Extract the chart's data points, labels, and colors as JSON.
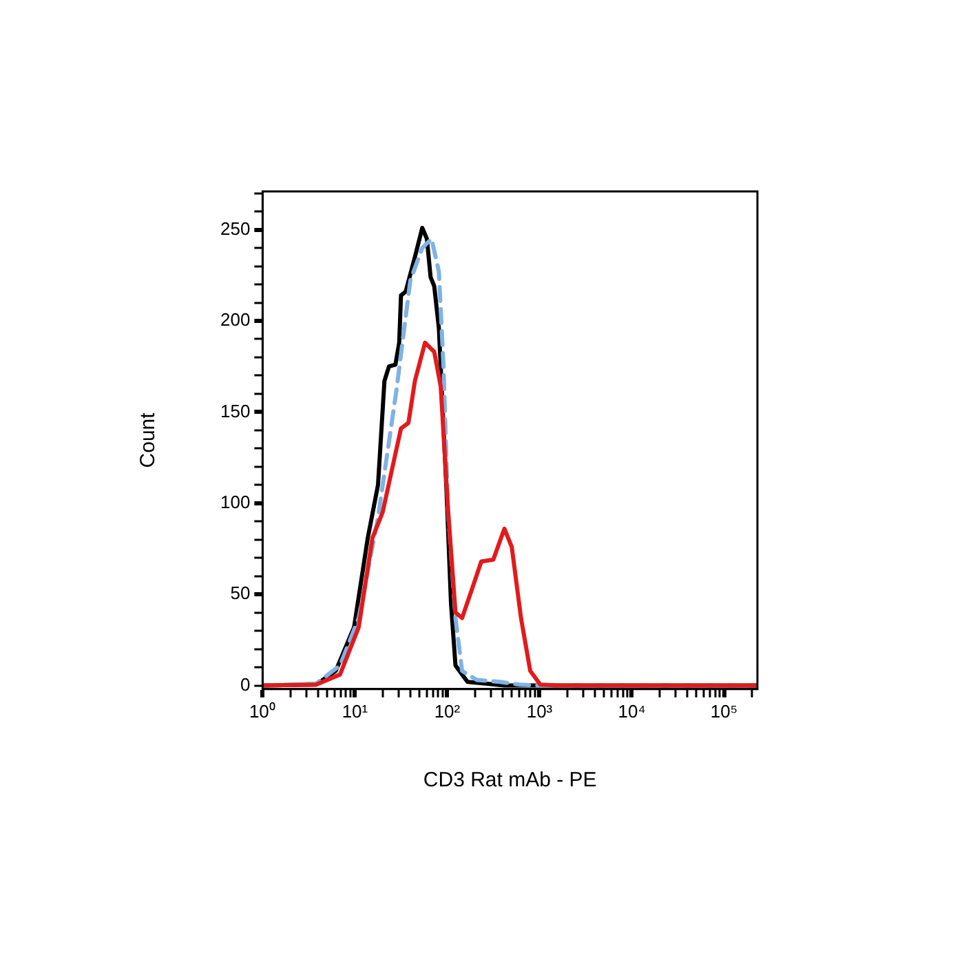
{
  "chart_data": {
    "type": "line",
    "xlabel": "CD3 Rat mAb - PE",
    "ylabel": "Count",
    "log": "x",
    "grid": false,
    "legend": false,
    "marker": "none",
    "xlim": [
      1,
      230000
    ],
    "xticks": [
      {
        "value": 1,
        "label": "10⁰"
      },
      {
        "value": 2,
        "label": null
      },
      {
        "value": 3,
        "label": null
      },
      {
        "value": 4,
        "label": null
      },
      {
        "value": 5,
        "label": null
      },
      {
        "value": 6,
        "label": null
      },
      {
        "value": 7,
        "label": null
      },
      {
        "value": 8,
        "label": null
      },
      {
        "value": 9,
        "label": null
      },
      {
        "value": 10,
        "label": "10¹"
      },
      {
        "value": 20,
        "label": null
      },
      {
        "value": 30,
        "label": null
      },
      {
        "value": 40,
        "label": null
      },
      {
        "value": 50,
        "label": null
      },
      {
        "value": 60,
        "label": null
      },
      {
        "value": 70,
        "label": null
      },
      {
        "value": 80,
        "label": null
      },
      {
        "value": 90,
        "label": null
      },
      {
        "value": 100,
        "label": "10²"
      },
      {
        "value": 200,
        "label": null
      },
      {
        "value": 300,
        "label": null
      },
      {
        "value": 400,
        "label": null
      },
      {
        "value": 500,
        "label": null
      },
      {
        "value": 600,
        "label": null
      },
      {
        "value": 700,
        "label": null
      },
      {
        "value": 800,
        "label": null
      },
      {
        "value": 900,
        "label": null
      },
      {
        "value": 1000,
        "label": "10³"
      },
      {
        "value": 2000,
        "label": null
      },
      {
        "value": 3000,
        "label": null
      },
      {
        "value": 4000,
        "label": null
      },
      {
        "value": 5000,
        "label": null
      },
      {
        "value": 6000,
        "label": null
      },
      {
        "value": 7000,
        "label": null
      },
      {
        "value": 8000,
        "label": null
      },
      {
        "value": 9000,
        "label": null
      },
      {
        "value": 10000,
        "label": "10⁴"
      },
      {
        "value": 20000,
        "label": null
      },
      {
        "value": 30000,
        "label": null
      },
      {
        "value": 40000,
        "label": null
      },
      {
        "value": 50000,
        "label": null
      },
      {
        "value": 60000,
        "label": null
      },
      {
        "value": 70000,
        "label": null
      },
      {
        "value": 80000,
        "label": null
      },
      {
        "value": 90000,
        "label": null
      },
      {
        "value": 100000,
        "label": "10⁵"
      },
      {
        "value": 200000,
        "label": null
      }
    ],
    "ylim": [
      -2,
      271
    ],
    "yticks": [
      0,
      {
        "value": 10,
        "label": null
      },
      {
        "value": 20,
        "label": null
      },
      {
        "value": 30,
        "label": null
      },
      {
        "value": 40,
        "label": null
      },
      50,
      {
        "value": 60,
        "label": null
      },
      {
        "value": 70,
        "label": null
      },
      {
        "value": 80,
        "label": null
      },
      {
        "value": 90,
        "label": null
      },
      100,
      {
        "value": 110,
        "label": null
      },
      {
        "value": 120,
        "label": null
      },
      {
        "value": 130,
        "label": null
      },
      {
        "value": 140,
        "label": null
      },
      150,
      {
        "value": 160,
        "label": null
      },
      {
        "value": 170,
        "label": null
      },
      {
        "value": 180,
        "label": null
      },
      {
        "value": 190,
        "label": null
      },
      200,
      {
        "value": 210,
        "label": null
      },
      {
        "value": 220,
        "label": null
      },
      {
        "value": 230,
        "label": null
      },
      {
        "value": 240,
        "label": null
      },
      250,
      {
        "value": 260,
        "label": null
      },
      {
        "value": 270,
        "label": null
      }
    ],
    "series": [
      {
        "color": "#000000",
        "line_style": "solid",
        "x": [
          1,
          3.8,
          6.2,
          9.8,
          13.8,
          17.8,
          20.9,
          23.4,
          27.5,
          30.2,
          31.6,
          35.5,
          44.7,
          53.7,
          60.3,
          66.1,
          72.4,
          81.3,
          97.7,
          110,
          123,
          166,
          263,
          417,
          1550,
          230000
        ],
        "values": [
          0,
          0.5,
          8,
          32,
          81,
          110,
          167,
          175,
          176,
          188,
          214,
          216,
          235,
          251,
          245,
          224,
          219,
          196,
          110,
          45,
          11,
          2,
          1,
          0,
          0,
          0
        ]
      },
      {
        "color": "#7fb2e5",
        "line_style": "dashed",
        "x": [
          1,
          3.8,
          6.9,
          11,
          17.8,
          28.2,
          39.8,
          53.7,
          67.6,
          81.3,
          91.2,
          102,
          123,
          145,
          209,
          372,
          603,
          955,
          230000
        ],
        "values": [
          0,
          1,
          11,
          37,
          92,
          162,
          222,
          240,
          245,
          227,
          175,
          96,
          37,
          8,
          3,
          2,
          0.5,
          0,
          0
        ]
      },
      {
        "color": "#e31a1c",
        "line_style": "solid",
        "x": [
          1,
          3.8,
          6.9,
          11,
          15.5,
          20,
          25.1,
          31.6,
          38,
          44.7,
          57.5,
          72.4,
          85.1,
          102,
          123,
          145,
          186,
          234,
          316,
          417,
          501,
          631,
          794,
          1020,
          1550,
          230000
        ],
        "values": [
          0,
          0.5,
          6,
          32,
          81,
          95,
          118,
          141,
          144,
          167,
          188,
          183,
          164,
          97,
          40,
          37,
          53,
          68,
          69,
          86,
          76,
          37,
          8,
          0.5,
          0,
          0
        ]
      }
    ]
  }
}
